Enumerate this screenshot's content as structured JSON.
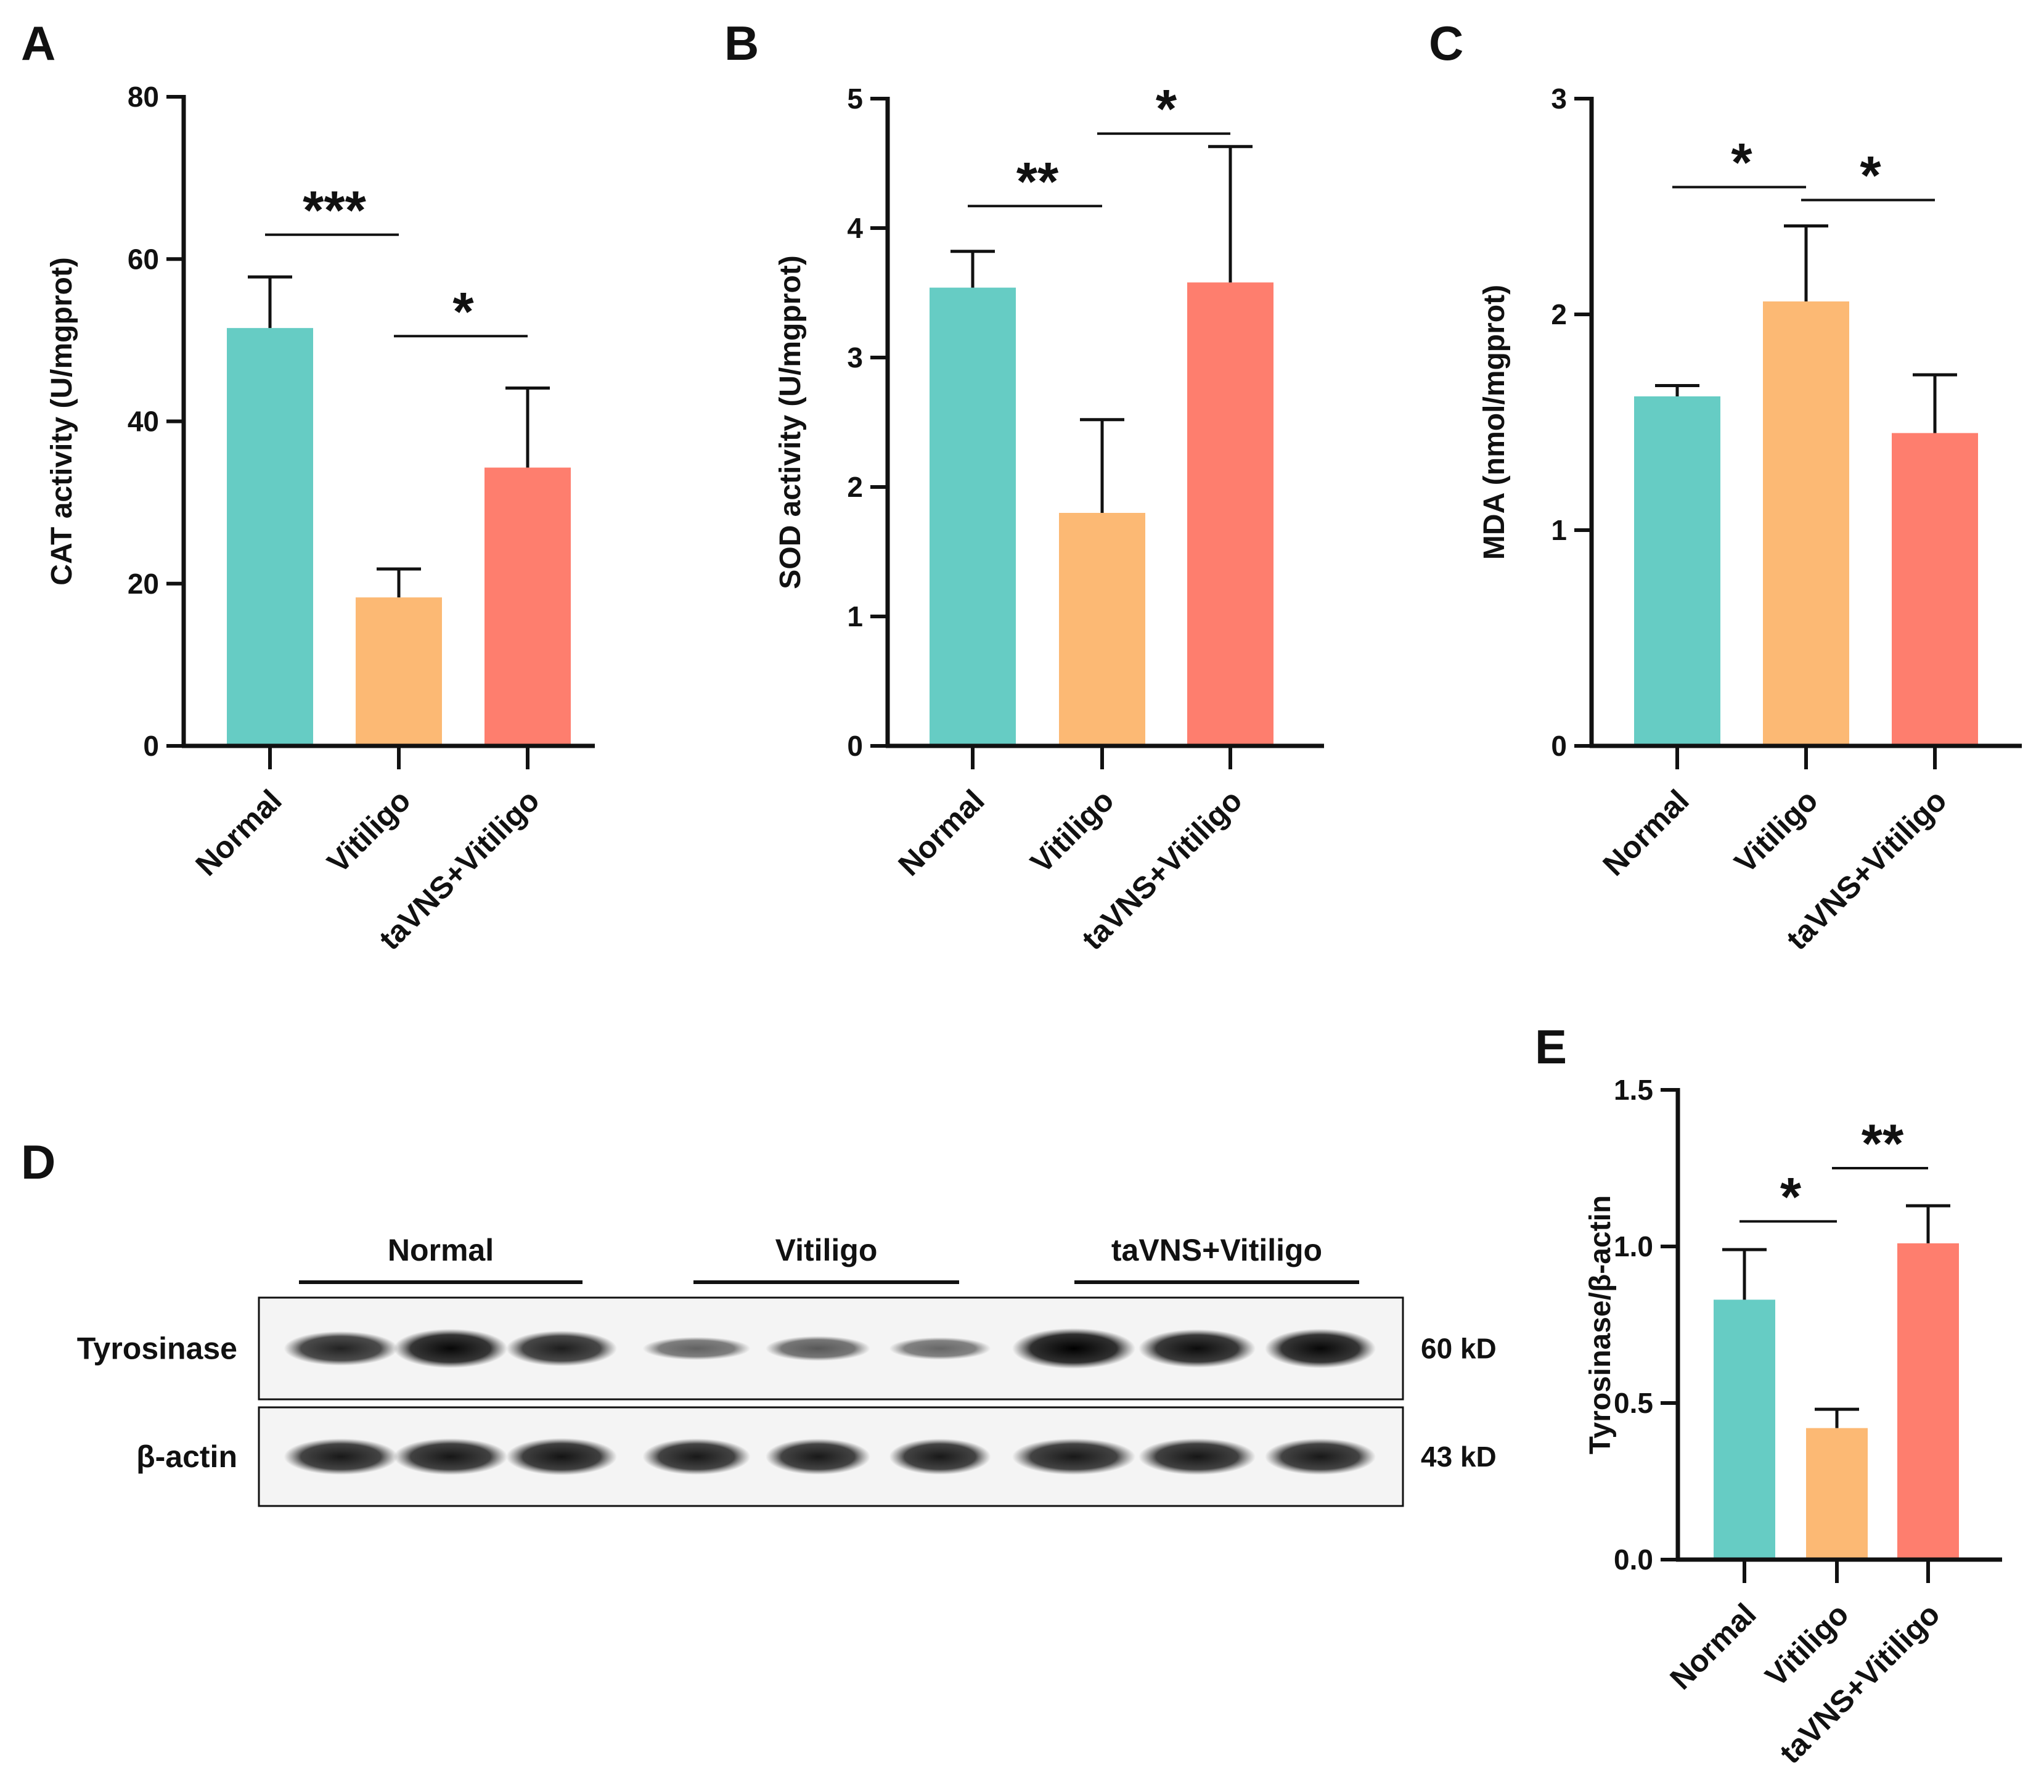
{
  "panels": [
    {
      "id": "A",
      "letter": "A"
    },
    {
      "id": "B",
      "letter": "B"
    },
    {
      "id": "C",
      "letter": "C"
    },
    {
      "id": "D",
      "letter": "D"
    },
    {
      "id": "E",
      "letter": "E"
    }
  ],
  "colors": {
    "Normal": "#66ccc4",
    "Vitiligo": "#fcb974",
    "taVNS+Vitiligo": "#fe7e6e",
    "axis": "#111111",
    "sig": "#1a1a2e"
  },
  "chart_data": [
    {
      "panel": "A",
      "type": "bar",
      "categories": [
        "Normal",
        "Vitiligo",
        "taVNS+Vitiligo"
      ],
      "values": [
        51.5,
        18.3,
        34.3
      ],
      "errors": [
        6.3,
        3.5,
        9.8
      ],
      "ylabel": "CAT activity (U/mgprot)",
      "ylim": [
        0,
        80
      ],
      "yticks": [
        "0",
        "20",
        "40",
        "60",
        "80"
      ],
      "significance": [
        {
          "from": 0,
          "to": 1,
          "label": "***",
          "y": 63
        },
        {
          "from": 1,
          "to": 2,
          "label": "*",
          "y": 50.5
        }
      ]
    },
    {
      "panel": "B",
      "type": "bar",
      "categories": [
        "Normal",
        "Vitiligo",
        "taVNS+Vitiligo"
      ],
      "values": [
        3.54,
        1.8,
        3.58
      ],
      "errors": [
        0.28,
        0.72,
        1.05
      ],
      "ylabel": "SOD activity (U/mgprot)",
      "ylim": [
        0,
        5
      ],
      "yticks": [
        "0",
        "1",
        "2",
        "3",
        "4",
        "5"
      ],
      "significance": [
        {
          "from": 0,
          "to": 1,
          "label": "**",
          "y": 4.17
        },
        {
          "from": 1,
          "to": 2,
          "label": "*",
          "y": 4.73
        }
      ]
    },
    {
      "panel": "C",
      "type": "bar",
      "categories": [
        "Normal",
        "Vitiligo",
        "taVNS+Vitiligo"
      ],
      "values": [
        1.62,
        2.06,
        1.45
      ],
      "errors": [
        0.05,
        0.35,
        0.27
      ],
      "ylabel": "MDA (nmol/mgprot)",
      "ylim": [
        0,
        3
      ],
      "yticks": [
        "0",
        "1",
        "2",
        "3"
      ],
      "significance": [
        {
          "from": 0,
          "to": 1,
          "label": "*",
          "y": 2.59
        },
        {
          "from": 1,
          "to": 2,
          "label": "*",
          "y": 2.53
        }
      ]
    },
    {
      "panel": "E",
      "type": "bar",
      "categories": [
        "Normal",
        "Vitiligo",
        "taVNS+Vitiligo"
      ],
      "values": [
        0.83,
        0.42,
        1.01
      ],
      "errors": [
        0.16,
        0.06,
        0.12
      ],
      "ylabel": "Tyrosinase/β-actin",
      "ylim": [
        0,
        1.5
      ],
      "yticks": [
        "0.0",
        "0.5",
        "1.0",
        "1.5"
      ],
      "significance": [
        {
          "from": 0,
          "to": 1,
          "label": "*",
          "y": 1.08
        },
        {
          "from": 1,
          "to": 2,
          "label": "**",
          "y": 1.25
        }
      ]
    }
  ],
  "blot": {
    "groups": [
      "Normal",
      "Vitiligo",
      "taVNS+Vitiligo"
    ],
    "rows": [
      {
        "label": "Tyrosinase",
        "kd": "60 kD",
        "intensities": [
          0.78,
          0.95,
          0.82,
          0.38,
          0.45,
          0.36,
          1.0,
          0.92,
          0.96
        ]
      },
      {
        "label": "β-actin",
        "kd": "43 kD",
        "intensities": [
          0.85,
          0.86,
          0.88,
          0.85,
          0.84,
          0.84,
          0.85,
          0.86,
          0.85
        ]
      }
    ]
  }
}
